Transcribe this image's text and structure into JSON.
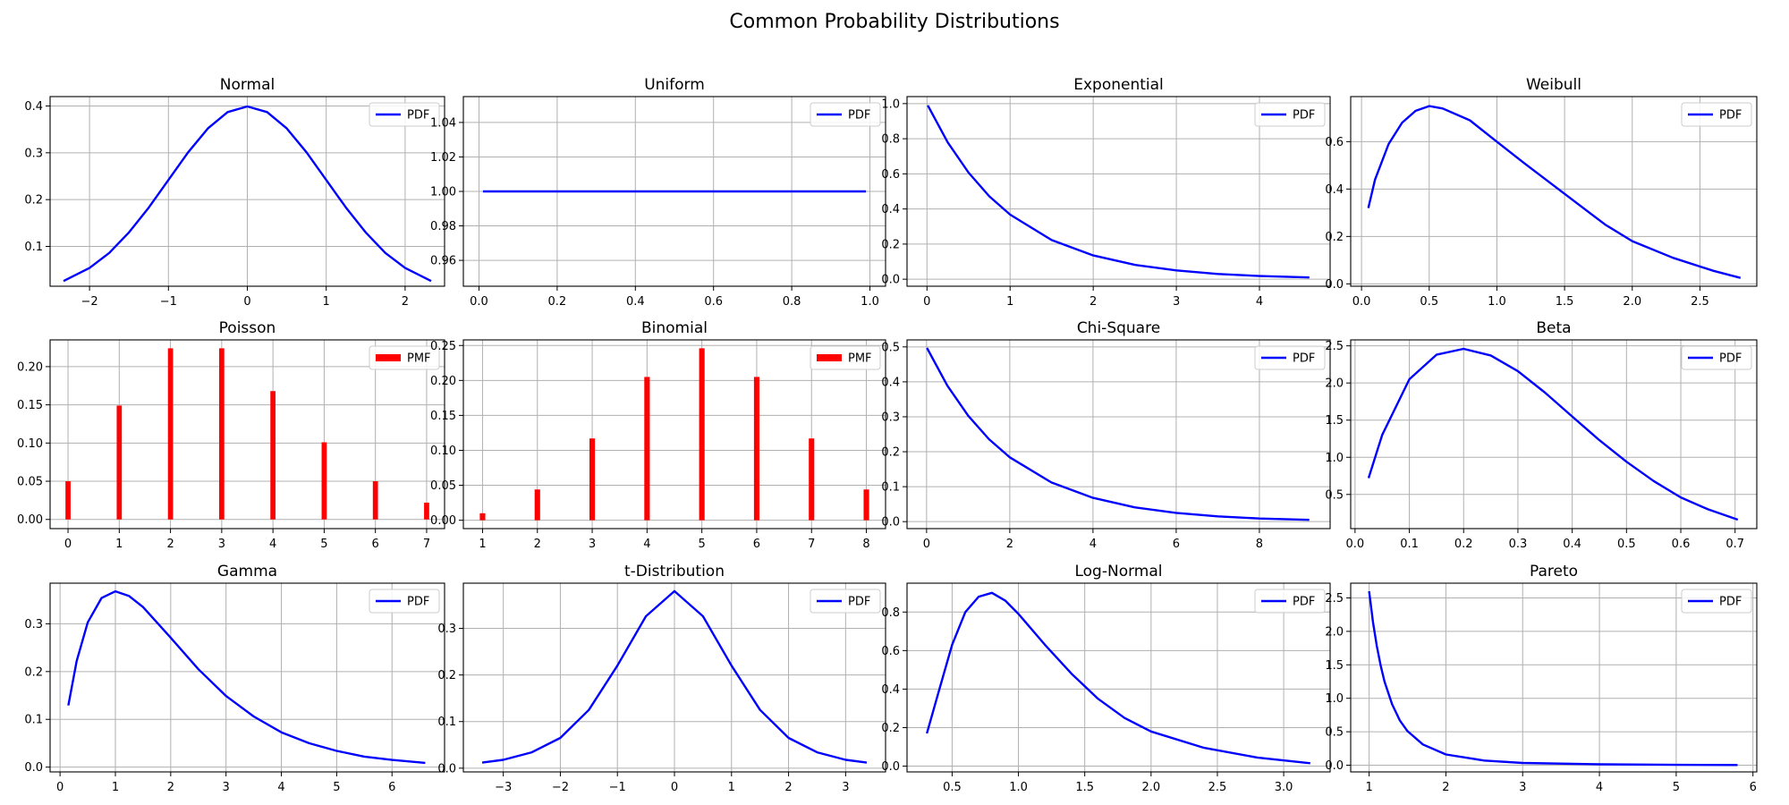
{
  "figure": {
    "title": "Common Probability Distributions",
    "colors": {
      "line": "#0000ff",
      "bar": "#ff0000",
      "grid": "#b0b0b0"
    }
  },
  "chart_data": [
    {
      "type": "line",
      "title": "Normal",
      "legend": "PDF",
      "legend_placement": "top-right",
      "grid": true,
      "xlim": [
        -2.5,
        2.5
      ],
      "ylim": [
        0.015,
        0.42
      ],
      "xticks": [
        -2,
        -1,
        0,
        1,
        2
      ],
      "xtick_labels": [
        "−2",
        "−1",
        "0",
        "1",
        "2"
      ],
      "yticks": [
        0.1,
        0.2,
        0.3,
        0.4
      ],
      "ytick_labels": [
        "0.1",
        "0.2",
        "0.3",
        "0.4"
      ],
      "x": [
        -2.33,
        -2.0,
        -1.75,
        -1.5,
        -1.25,
        -1.0,
        -0.75,
        -0.5,
        -0.25,
        0.0,
        0.25,
        0.5,
        0.75,
        1.0,
        1.25,
        1.5,
        1.75,
        2.0,
        2.33
      ],
      "y": [
        0.026,
        0.054,
        0.086,
        0.13,
        0.183,
        0.242,
        0.301,
        0.352,
        0.387,
        0.399,
        0.387,
        0.352,
        0.301,
        0.242,
        0.183,
        0.13,
        0.086,
        0.054,
        0.026
      ]
    },
    {
      "type": "line",
      "title": "Uniform",
      "legend": "PDF",
      "legend_placement": "top-right",
      "grid": true,
      "xlim": [
        -0.04,
        1.04
      ],
      "ylim": [
        0.945,
        1.055
      ],
      "xticks": [
        0,
        0.2,
        0.4,
        0.6,
        0.8,
        1.0
      ],
      "xtick_labels": [
        "0.0",
        "0.2",
        "0.4",
        "0.6",
        "0.8",
        "1.0"
      ],
      "yticks": [
        0.96,
        0.98,
        1.0,
        1.02,
        1.04
      ],
      "ytick_labels": [
        "0.96",
        "0.98",
        "1.00",
        "1.02",
        "1.04"
      ],
      "x": [
        0.01,
        0.99
      ],
      "y": [
        1.0,
        1.0
      ]
    },
    {
      "type": "line",
      "title": "Exponential",
      "legend": "PDF",
      "legend_placement": "top-right",
      "grid": true,
      "xlim": [
        -0.24,
        4.85
      ],
      "ylim": [
        -0.04,
        1.04
      ],
      "xticks": [
        0,
        1,
        2,
        3,
        4
      ],
      "xtick_labels": [
        "0",
        "1",
        "2",
        "3",
        "4"
      ],
      "yticks": [
        0,
        0.2,
        0.4,
        0.6,
        0.8,
        1.0
      ],
      "ytick_labels": [
        "0.0",
        "0.2",
        "0.4",
        "0.6",
        "0.8",
        "1.0"
      ],
      "x": [
        0.01,
        0.25,
        0.5,
        0.75,
        1.0,
        1.5,
        2.0,
        2.5,
        3.0,
        3.5,
        4.0,
        4.6
      ],
      "y": [
        0.99,
        0.779,
        0.607,
        0.472,
        0.368,
        0.223,
        0.135,
        0.082,
        0.05,
        0.03,
        0.018,
        0.01
      ]
    },
    {
      "type": "line",
      "title": "Weibull",
      "legend": "PDF",
      "legend_placement": "top-right",
      "grid": true,
      "xlim": [
        -0.08,
        2.92
      ],
      "ylim": [
        -0.01,
        0.79
      ],
      "xticks": [
        0,
        0.5,
        1.0,
        1.5,
        2.0,
        2.5
      ],
      "xtick_labels": [
        "0.0",
        "0.5",
        "1.0",
        "1.5",
        "2.0",
        "2.5"
      ],
      "yticks": [
        0,
        0.2,
        0.4,
        0.6
      ],
      "ytick_labels": [
        "0.0",
        "0.2",
        "0.4",
        "0.6"
      ],
      "x": [
        0.05,
        0.1,
        0.2,
        0.3,
        0.4,
        0.5,
        0.6,
        0.8,
        1.0,
        1.2,
        1.5,
        1.8,
        2.0,
        2.3,
        2.6,
        2.8
      ],
      "y": [
        0.32,
        0.44,
        0.59,
        0.68,
        0.73,
        0.75,
        0.74,
        0.69,
        0.6,
        0.51,
        0.38,
        0.25,
        0.18,
        0.11,
        0.055,
        0.025
      ]
    },
    {
      "type": "bar",
      "title": "Poisson",
      "legend": "PMF",
      "legend_placement": "top-right",
      "grid": true,
      "xlim": [
        -0.35,
        7.35
      ],
      "ylim": [
        -0.012,
        0.235
      ],
      "xticks": [
        0,
        1,
        2,
        3,
        4,
        5,
        6,
        7
      ],
      "xtick_labels": [
        "0",
        "1",
        "2",
        "3",
        "4",
        "5",
        "6",
        "7"
      ],
      "yticks": [
        0,
        0.05,
        0.1,
        0.15,
        0.2
      ],
      "ytick_labels": [
        "0.00",
        "0.05",
        "0.10",
        "0.15",
        "0.20"
      ],
      "categories": [
        0,
        1,
        2,
        3,
        4,
        5,
        6,
        7
      ],
      "values": [
        0.05,
        0.149,
        0.224,
        0.224,
        0.168,
        0.101,
        0.05,
        0.022
      ]
    },
    {
      "type": "bar",
      "title": "Binomial",
      "legend": "PMF",
      "legend_placement": "top-right",
      "grid": true,
      "xlim": [
        0.65,
        8.35
      ],
      "ylim": [
        -0.012,
        0.258
      ],
      "xticks": [
        1,
        2,
        3,
        4,
        5,
        6,
        7,
        8
      ],
      "xtick_labels": [
        "1",
        "2",
        "3",
        "4",
        "5",
        "6",
        "7",
        "8"
      ],
      "yticks": [
        0,
        0.05,
        0.1,
        0.15,
        0.2,
        0.25
      ],
      "ytick_labels": [
        "0.00",
        "0.05",
        "0.10",
        "0.15",
        "0.20",
        "0.25"
      ],
      "categories": [
        1,
        2,
        3,
        4,
        5,
        6,
        7,
        8
      ],
      "values": [
        0.01,
        0.044,
        0.117,
        0.205,
        0.246,
        0.205,
        0.117,
        0.044
      ]
    },
    {
      "type": "line",
      "title": "Chi-Square",
      "legend": "PDF",
      "legend_placement": "top-right",
      "grid": true,
      "xlim": [
        -0.47,
        9.7
      ],
      "ylim": [
        -0.02,
        0.52
      ],
      "xticks": [
        0,
        2,
        4,
        6,
        8
      ],
      "xtick_labels": [
        "0",
        "2",
        "4",
        "6",
        "8"
      ],
      "yticks": [
        0,
        0.1,
        0.2,
        0.3,
        0.4,
        0.5
      ],
      "ytick_labels": [
        "0.0",
        "0.1",
        "0.2",
        "0.3",
        "0.4",
        "0.5"
      ],
      "x": [
        0.01,
        0.5,
        1.0,
        1.5,
        2.0,
        3.0,
        4.0,
        5.0,
        6.0,
        7.0,
        8.0,
        9.2
      ],
      "y": [
        0.497,
        0.389,
        0.303,
        0.236,
        0.184,
        0.112,
        0.068,
        0.041,
        0.025,
        0.015,
        0.009,
        0.005
      ]
    },
    {
      "type": "line",
      "title": "Beta",
      "legend": "PDF",
      "legend_placement": "top-right",
      "grid": true,
      "xlim": [
        -0.008,
        0.74
      ],
      "ylim": [
        0.04,
        2.58
      ],
      "xticks": [
        0,
        0.1,
        0.2,
        0.3,
        0.4,
        0.5,
        0.6,
        0.7
      ],
      "xtick_labels": [
        "0.0",
        "0.1",
        "0.2",
        "0.3",
        "0.4",
        "0.5",
        "0.6",
        "0.7"
      ],
      "yticks": [
        0.5,
        1.0,
        1.5,
        2.0,
        2.5
      ],
      "ytick_labels": [
        "0.5",
        "1.0",
        "1.5",
        "2.0",
        "2.5"
      ],
      "x": [
        0.025,
        0.05,
        0.1,
        0.15,
        0.2,
        0.25,
        0.3,
        0.35,
        0.4,
        0.45,
        0.5,
        0.55,
        0.6,
        0.65,
        0.705
      ],
      "y": [
        0.72,
        1.3,
        2.05,
        2.38,
        2.46,
        2.37,
        2.16,
        1.87,
        1.55,
        1.23,
        0.94,
        0.68,
        0.46,
        0.3,
        0.16
      ]
    },
    {
      "type": "line",
      "title": "Gamma",
      "legend": "PDF",
      "legend_placement": "top-right",
      "grid": true,
      "xlim": [
        -0.18,
        6.95
      ],
      "ylim": [
        -0.01,
        0.385
      ],
      "xticks": [
        0,
        1,
        2,
        3,
        4,
        5,
        6
      ],
      "xtick_labels": [
        "0",
        "1",
        "2",
        "3",
        "4",
        "5",
        "6"
      ],
      "yticks": [
        0,
        0.1,
        0.2,
        0.3
      ],
      "ytick_labels": [
        "0.0",
        "0.1",
        "0.2",
        "0.3"
      ],
      "x": [
        0.15,
        0.3,
        0.5,
        0.75,
        1.0,
        1.25,
        1.5,
        2.0,
        2.5,
        3.0,
        3.5,
        4.0,
        4.5,
        5.0,
        5.5,
        6.0,
        6.6
      ],
      "y": [
        0.129,
        0.222,
        0.303,
        0.354,
        0.368,
        0.358,
        0.335,
        0.271,
        0.205,
        0.149,
        0.106,
        0.073,
        0.05,
        0.034,
        0.022,
        0.015,
        0.009
      ]
    },
    {
      "type": "line",
      "title": "t-Distribution",
      "legend": "PDF",
      "legend_placement": "top-right",
      "grid": true,
      "xlim": [
        -3.7,
        3.7
      ],
      "ylim": [
        -0.008,
        0.397
      ],
      "xticks": [
        -3,
        -2,
        -1,
        0,
        1,
        2,
        3
      ],
      "xtick_labels": [
        "−3",
        "−2",
        "−1",
        "0",
        "1",
        "2",
        "3"
      ],
      "yticks": [
        0,
        0.1,
        0.2,
        0.3
      ],
      "ytick_labels": [
        "0.0",
        "0.1",
        "0.2",
        "0.3"
      ],
      "x": [
        -3.37,
        -3.0,
        -2.5,
        -2.0,
        -1.5,
        -1.0,
        -0.5,
        0.0,
        0.5,
        1.0,
        1.5,
        2.0,
        2.5,
        3.0,
        3.37
      ],
      "y": [
        0.012,
        0.018,
        0.034,
        0.065,
        0.125,
        0.22,
        0.326,
        0.38,
        0.326,
        0.22,
        0.125,
        0.065,
        0.034,
        0.018,
        0.012
      ]
    },
    {
      "type": "line",
      "title": "Log-Normal",
      "legend": "PDF",
      "legend_placement": "top-right",
      "grid": true,
      "xlim": [
        0.16,
        3.35
      ],
      "ylim": [
        -0.03,
        0.95
      ],
      "xticks": [
        0.5,
        1.0,
        1.5,
        2.0,
        2.5,
        3.0
      ],
      "xtick_labels": [
        "0.5",
        "1.0",
        "1.5",
        "2.0",
        "2.5",
        "3.0"
      ],
      "yticks": [
        0,
        0.2,
        0.4,
        0.6,
        0.8
      ],
      "ytick_labels": [
        "0.0",
        "0.2",
        "0.4",
        "0.6",
        "0.8"
      ],
      "x": [
        0.31,
        0.4,
        0.5,
        0.6,
        0.7,
        0.8,
        0.9,
        1.0,
        1.2,
        1.4,
        1.6,
        1.8,
        2.0,
        2.4,
        2.8,
        3.2
      ],
      "y": [
        0.17,
        0.39,
        0.63,
        0.8,
        0.88,
        0.9,
        0.86,
        0.79,
        0.63,
        0.48,
        0.35,
        0.25,
        0.18,
        0.095,
        0.045,
        0.015
      ]
    },
    {
      "type": "line",
      "title": "Pareto",
      "legend": "PDF",
      "legend_placement": "top-right",
      "grid": true,
      "xlim": [
        0.76,
        6.05
      ],
      "ylim": [
        -0.1,
        2.72
      ],
      "xticks": [
        1,
        2,
        3,
        4,
        5,
        6
      ],
      "xtick_labels": [
        "1",
        "2",
        "3",
        "4",
        "5",
        "6"
      ],
      "yticks": [
        0,
        0.5,
        1.0,
        1.5,
        2.0,
        2.5
      ],
      "ytick_labels": [
        "0.0",
        "0.5",
        "1.0",
        "1.5",
        "2.0",
        "2.5"
      ],
      "x": [
        1.0,
        1.05,
        1.1,
        1.15,
        1.2,
        1.3,
        1.4,
        1.5,
        1.7,
        2.0,
        2.5,
        3.0,
        4.0,
        5.0,
        5.8
      ],
      "y": [
        2.6,
        2.14,
        1.78,
        1.49,
        1.25,
        0.91,
        0.67,
        0.51,
        0.31,
        0.16,
        0.07,
        0.033,
        0.013,
        0.006,
        0.003
      ]
    }
  ]
}
